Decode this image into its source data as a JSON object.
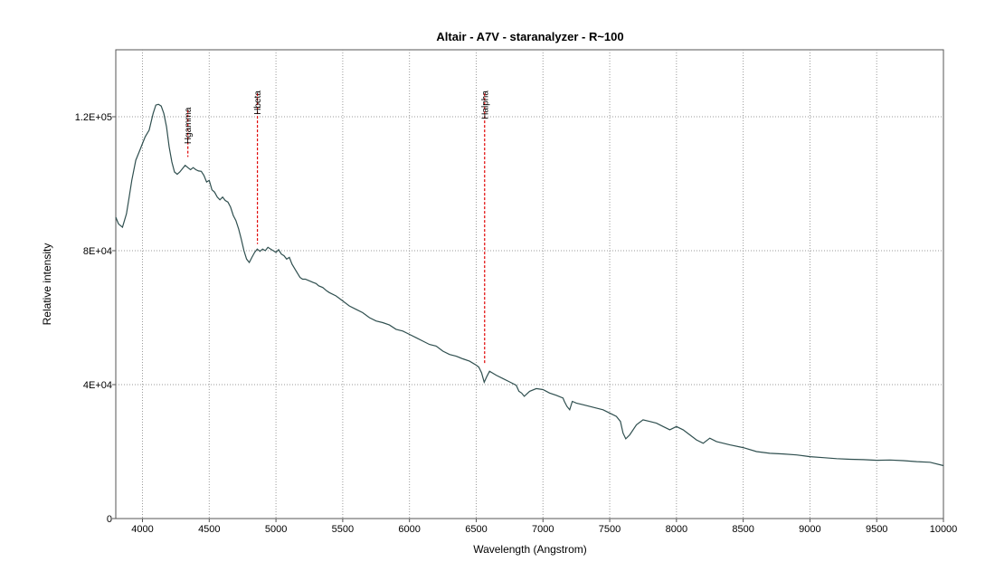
{
  "chart_data": {
    "type": "line",
    "title": "Altair - A7V - staranalyzer - R~100",
    "xlabel": "Wavelength (Angstrom)",
    "ylabel": "Relative intensity",
    "xlim": [
      3800,
      10000
    ],
    "ylim": [
      0,
      140000
    ],
    "x_ticks": [
      4000,
      4500,
      5000,
      5500,
      6000,
      6500,
      7000,
      7500,
      8000,
      8500,
      9000,
      9500,
      10000
    ],
    "x_tick_labels": [
      "4000",
      "4500",
      "5000",
      "5500",
      "6000",
      "6500",
      "7000",
      "7500",
      "8000",
      "8500",
      "9000",
      "9500",
      "10000"
    ],
    "y_ticks": [
      0,
      40000,
      80000,
      120000
    ],
    "y_tick_labels": [
      "0",
      "4E+04",
      "8E+04",
      "1.2E+05"
    ],
    "grid": true,
    "line_color": "#2f4f4f",
    "marker_color": "#e00000",
    "series": [
      {
        "x": [
          3800,
          3820,
          3850,
          3880,
          3900,
          3920,
          3950,
          3980,
          4000,
          4020,
          4050,
          4080,
          4100,
          4120,
          4140,
          4160,
          4180,
          4200,
          4220,
          4240,
          4260,
          4280,
          4300,
          4320,
          4340,
          4360,
          4380,
          4400,
          4420,
          4440,
          4460,
          4480,
          4500,
          4520,
          4540,
          4560,
          4580,
          4600,
          4620,
          4640,
          4660,
          4680,
          4700,
          4720,
          4740,
          4760,
          4780,
          4800,
          4820,
          4840,
          4860,
          4880,
          4900,
          4920,
          4940,
          4960,
          4980,
          5000,
          5020,
          5040,
          5060,
          5080,
          5100,
          5120,
          5150,
          5180,
          5200,
          5220,
          5250,
          5280,
          5300,
          5320,
          5350,
          5380,
          5400,
          5450,
          5500,
          5550,
          5600,
          5650,
          5700,
          5750,
          5800,
          5850,
          5900,
          5950,
          6000,
          6050,
          6100,
          6150,
          6200,
          6250,
          6300,
          6350,
          6400,
          6450,
          6500,
          6520,
          6540,
          6560,
          6580,
          6600,
          6620,
          6650,
          6700,
          6750,
          6800,
          6820,
          6840,
          6860,
          6900,
          6950,
          7000,
          7050,
          7100,
          7150,
          7160,
          7180,
          7200,
          7220,
          7250,
          7300,
          7350,
          7400,
          7450,
          7500,
          7550,
          7580,
          7600,
          7620,
          7650,
          7700,
          7750,
          7800,
          7850,
          7900,
          7950,
          8000,
          8050,
          8100,
          8150,
          8200,
          8250,
          8300,
          8400,
          8500,
          8600,
          8700,
          8800,
          8900,
          9000,
          9100,
          9200,
          9300,
          9400,
          9500,
          9600,
          9700,
          9800,
          9900,
          10000
        ],
        "y": [
          90000,
          88000,
          87000,
          91000,
          96000,
          101000,
          107000,
          110000,
          112000,
          114000,
          116000,
          121000,
          123500,
          123700,
          123200,
          121000,
          117000,
          111000,
          106500,
          103500,
          102800,
          103500,
          104500,
          105500,
          104800,
          104200,
          104800,
          104200,
          103800,
          103700,
          102500,
          100500,
          101000,
          98200,
          97500,
          96000,
          95200,
          96000,
          95000,
          94500,
          93000,
          90500,
          89000,
          86500,
          83500,
          80000,
          77500,
          76500,
          78000,
          79500,
          80500,
          79800,
          80500,
          80000,
          81000,
          80500,
          80000,
          79500,
          80300,
          79000,
          78500,
          77500,
          78000,
          76000,
          74000,
          72000,
          71500,
          71500,
          71000,
          70500,
          70200,
          69500,
          69000,
          68000,
          67500,
          66500,
          65000,
          63500,
          62500,
          61500,
          60000,
          59000,
          58500,
          57800,
          56500,
          56000,
          55000,
          54000,
          53000,
          52000,
          51500,
          50000,
          49000,
          48500,
          47700,
          47000,
          45800,
          45200,
          43500,
          40700,
          42500,
          44000,
          43500,
          42800,
          41800,
          40800,
          39800,
          38000,
          37500,
          36500,
          38000,
          38800,
          38500,
          37500,
          36800,
          36000,
          35000,
          33500,
          32500,
          35000,
          34500,
          34000,
          33500,
          33000,
          32500,
          31500,
          30500,
          29000,
          25500,
          23800,
          25000,
          28000,
          29500,
          29000,
          28500,
          27500,
          26500,
          27500,
          26500,
          25000,
          23500,
          22500,
          24000,
          23000,
          22000,
          21200,
          20000,
          19500,
          19300,
          19000,
          18500,
          18200,
          17900,
          17700,
          17600,
          17400,
          17500,
          17300,
          17000,
          16800,
          15800
        ]
      }
    ],
    "annotations": [
      {
        "label": "Hgamma",
        "x": 4340,
        "y_top": 122000,
        "y_bottom": 108000
      },
      {
        "label": "Hbeta",
        "x": 4861,
        "y_top": 127000,
        "y_bottom": 82000
      },
      {
        "label": "Halpha",
        "x": 6563,
        "y_top": 127000,
        "y_bottom": 46000
      }
    ]
  }
}
